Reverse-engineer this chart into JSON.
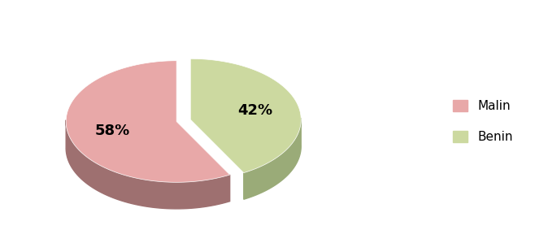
{
  "labels": [
    "Malin",
    "Benin"
  ],
  "values": [
    58,
    42
  ],
  "colors_top": [
    "#e8a8a8",
    "#ccd9a0"
  ],
  "colors_side": [
    "#9e7070",
    "#9aab78"
  ],
  "explode": [
    0,
    0.13
  ],
  "startangle": 90,
  "legend_labels": [
    "Malin",
    "Benin"
  ],
  "background_color": "#ffffff",
  "label_fontsize": 13,
  "legend_fontsize": 11,
  "depth": 0.12,
  "pct_labels": [
    "58%",
    "42%"
  ]
}
